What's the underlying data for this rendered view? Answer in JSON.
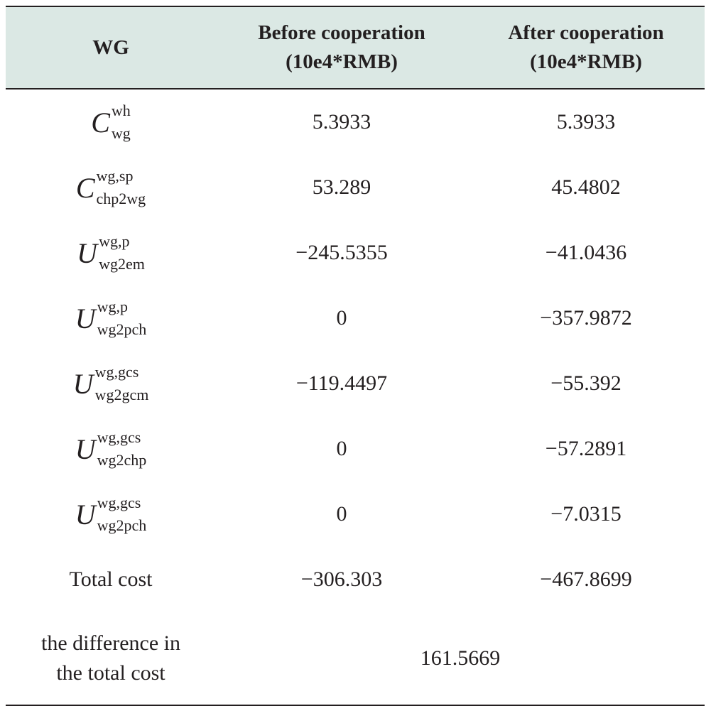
{
  "header": {
    "col1": "WG",
    "col2_line1": "Before cooperation",
    "col2_line2": "(10e4*RMB)",
    "col3_line1": "After cooperation",
    "col3_line2": "(10e4*RMB)"
  },
  "rows": [
    {
      "symbol": "C",
      "sup": "wh",
      "sub": "wg",
      "before": "5.3933",
      "after": "5.3933"
    },
    {
      "symbol": "C",
      "sup": "wg,sp",
      "sub": "chp2wg",
      "before": "53.289",
      "after": "45.4802"
    },
    {
      "symbol": "U",
      "sup": "wg,p",
      "sub": "wg2em",
      "before": "−245.5355",
      "after": "−41.0436"
    },
    {
      "symbol": "U",
      "sup": "wg,p",
      "sub": "wg2pch",
      "before": "0",
      "after": "−357.9872"
    },
    {
      "symbol": "U",
      "sup": "wg,gcs",
      "sub": "wg2gcm",
      "before": "−119.4497",
      "after": "−55.392"
    },
    {
      "symbol": "U",
      "sup": "wg,gcs",
      "sub": "wg2chp",
      "before": "0",
      "after": "−57.2891"
    },
    {
      "symbol": "U",
      "sup": "wg,gcs",
      "sub": "wg2pch",
      "before": "0",
      "after": "−7.0315"
    }
  ],
  "total": {
    "label": "Total cost",
    "before": "−306.303",
    "after": "−467.8699"
  },
  "difference": {
    "label_line1": "the difference in",
    "label_line2": "the total cost",
    "value": "161.5669"
  }
}
